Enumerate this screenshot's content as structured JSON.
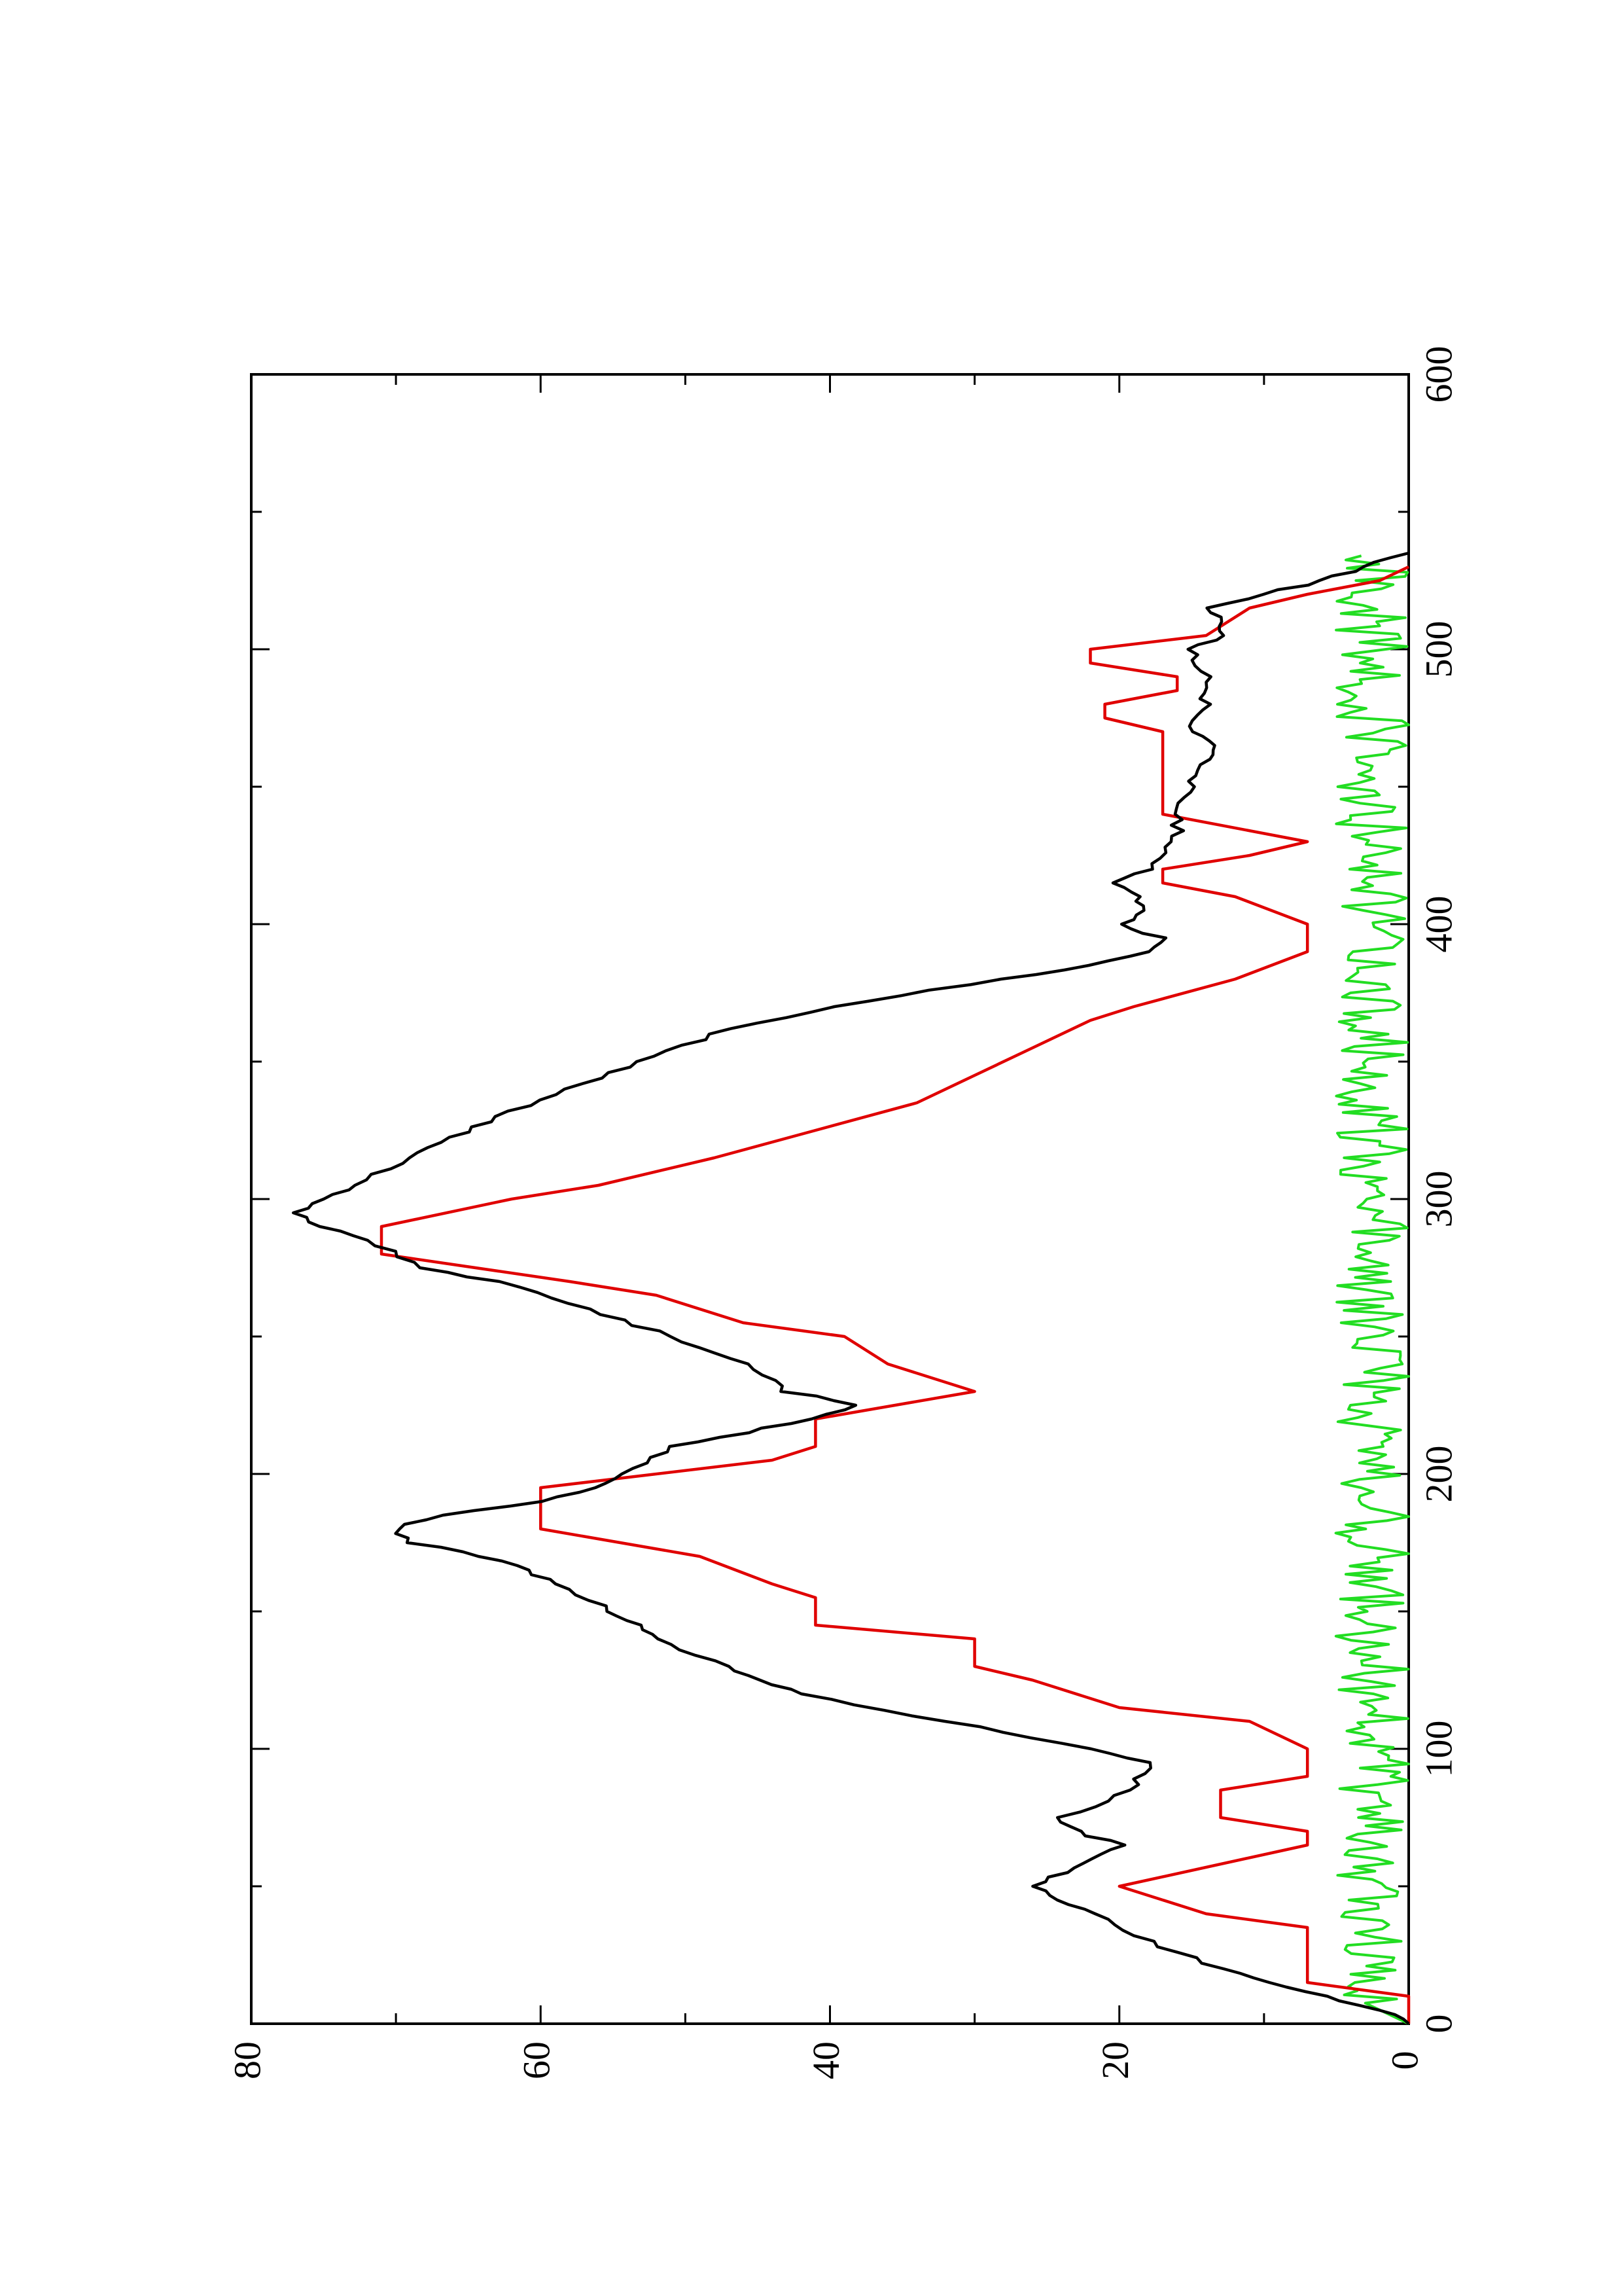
{
  "chart_data": {
    "type": "line",
    "orientation": "rotated-90-ccw",
    "title": "",
    "xlabel": "",
    "ylabel": "",
    "xlim": [
      0,
      600
    ],
    "ylim": [
      0,
      80
    ],
    "x_ticks": [
      0,
      100,
      200,
      300,
      400,
      500,
      600
    ],
    "y_ticks": [
      0,
      20,
      40,
      60,
      80
    ],
    "x_tick_labels": [
      "0",
      "100",
      "200",
      "300",
      "400",
      "500",
      "600"
    ],
    "y_tick_labels": [
      "0",
      "20",
      "40",
      "60",
      "80"
    ],
    "grid": false,
    "legend": false,
    "series": [
      {
        "color": "#000000",
        "style": "smooth-noisy",
        "x": [
          0,
          5,
          10,
          15,
          20,
          30,
          40,
          45,
          50,
          55,
          60,
          65,
          70,
          75,
          85,
          95,
          100,
          110,
          120,
          125,
          130,
          140,
          145,
          150,
          160,
          165,
          170,
          175,
          180,
          185,
          190,
          195,
          200,
          210,
          215,
          220,
          225,
          230,
          240,
          250,
          260,
          270,
          275,
          285,
          290,
          295,
          300,
          305,
          315,
          330,
          340,
          350,
          360,
          370,
          380,
          385,
          390,
          395,
          400,
          405,
          410,
          415,
          420,
          430,
          440,
          450,
          460,
          465,
          470,
          480,
          490,
          500,
          505,
          510,
          515,
          520,
          525,
          530,
          535
        ],
        "y": [
          0,
          2,
          6,
          10,
          13,
          18,
          22,
          24,
          26,
          24,
          22,
          20,
          23,
          24,
          19,
          18,
          22,
          32,
          42,
          45,
          47,
          52,
          53,
          55,
          59,
          61,
          64,
          69,
          70,
          67,
          60,
          56,
          54,
          51,
          46,
          41,
          38,
          43,
          46,
          51,
          57,
          63,
          68,
          72,
          75,
          77,
          75,
          73,
          69,
          63,
          58,
          53,
          48,
          40,
          28,
          22,
          18,
          17,
          20,
          18,
          19,
          20,
          18,
          16,
          16,
          15,
          14,
          13,
          15,
          14,
          14,
          15,
          13,
          13,
          14,
          10,
          6,
          3,
          0
        ]
      },
      {
        "color": "#e00000",
        "style": "step",
        "x": [
          0,
          10,
          15,
          35,
          40,
          45,
          50,
          65,
          70,
          75,
          85,
          90,
          100,
          110,
          115,
          125,
          130,
          140,
          145,
          155,
          160,
          170,
          180,
          195,
          205,
          210,
          220,
          230,
          240,
          250,
          255,
          265,
          270,
          280,
          290,
          300,
          305,
          315,
          325,
          335,
          345,
          355,
          365,
          370,
          380,
          390,
          400,
          410,
          415,
          420,
          425,
          430,
          440,
          450,
          460,
          470,
          475,
          480,
          485,
          490,
          495,
          500,
          505,
          515,
          520,
          525,
          530
        ],
        "y": [
          0,
          0,
          7,
          7,
          14,
          17,
          20,
          7,
          7,
          13,
          13,
          7,
          7,
          11,
          20,
          26,
          30,
          30,
          41,
          41,
          44,
          49,
          60,
          60,
          44,
          41,
          41,
          30,
          36,
          39,
          46,
          52,
          58,
          71,
          71,
          62,
          56,
          48,
          41,
          34,
          30,
          26,
          22,
          19,
          12,
          7,
          7,
          12,
          17,
          17,
          11,
          7,
          17,
          17,
          17,
          17,
          21,
          21,
          16,
          16,
          22,
          22,
          14,
          11,
          7,
          2,
          0
        ]
      },
      {
        "color": "#22dd22",
        "style": "noise",
        "x": [
          0,
          535
        ],
        "y_mean": 2.5,
        "y_range": [
          0,
          6
        ]
      }
    ]
  }
}
